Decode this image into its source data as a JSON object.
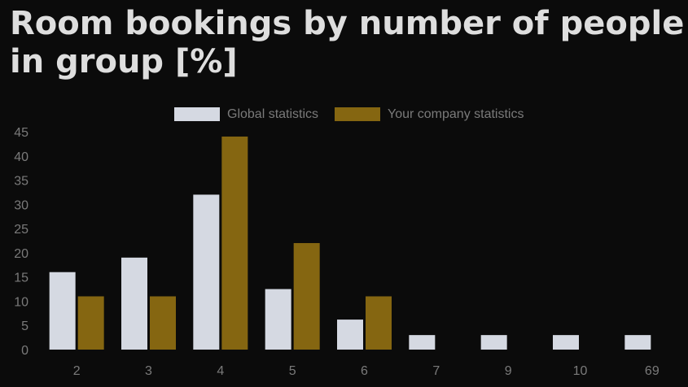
{
  "title": "Room bookings by number of people in group [%]",
  "chart_data": {
    "type": "bar",
    "categories": [
      "2",
      "3",
      "4",
      "5",
      "6",
      "7",
      "9",
      "10",
      "69"
    ],
    "series": [
      {
        "name": "Global statistics",
        "color": "#d5d9e2",
        "values": [
          16,
          19,
          32,
          12.5,
          6.2,
          3,
          3,
          3,
          3
        ]
      },
      {
        "name": "Your company statistics",
        "color": "#856611",
        "values": [
          11,
          11,
          44,
          22,
          11,
          0,
          0,
          0,
          0
        ]
      }
    ],
    "ylim": [
      0,
      45
    ],
    "yticks": [
      0,
      5,
      10,
      15,
      20,
      25,
      30,
      35,
      40,
      45
    ],
    "legend": "top-center",
    "grid": false
  }
}
